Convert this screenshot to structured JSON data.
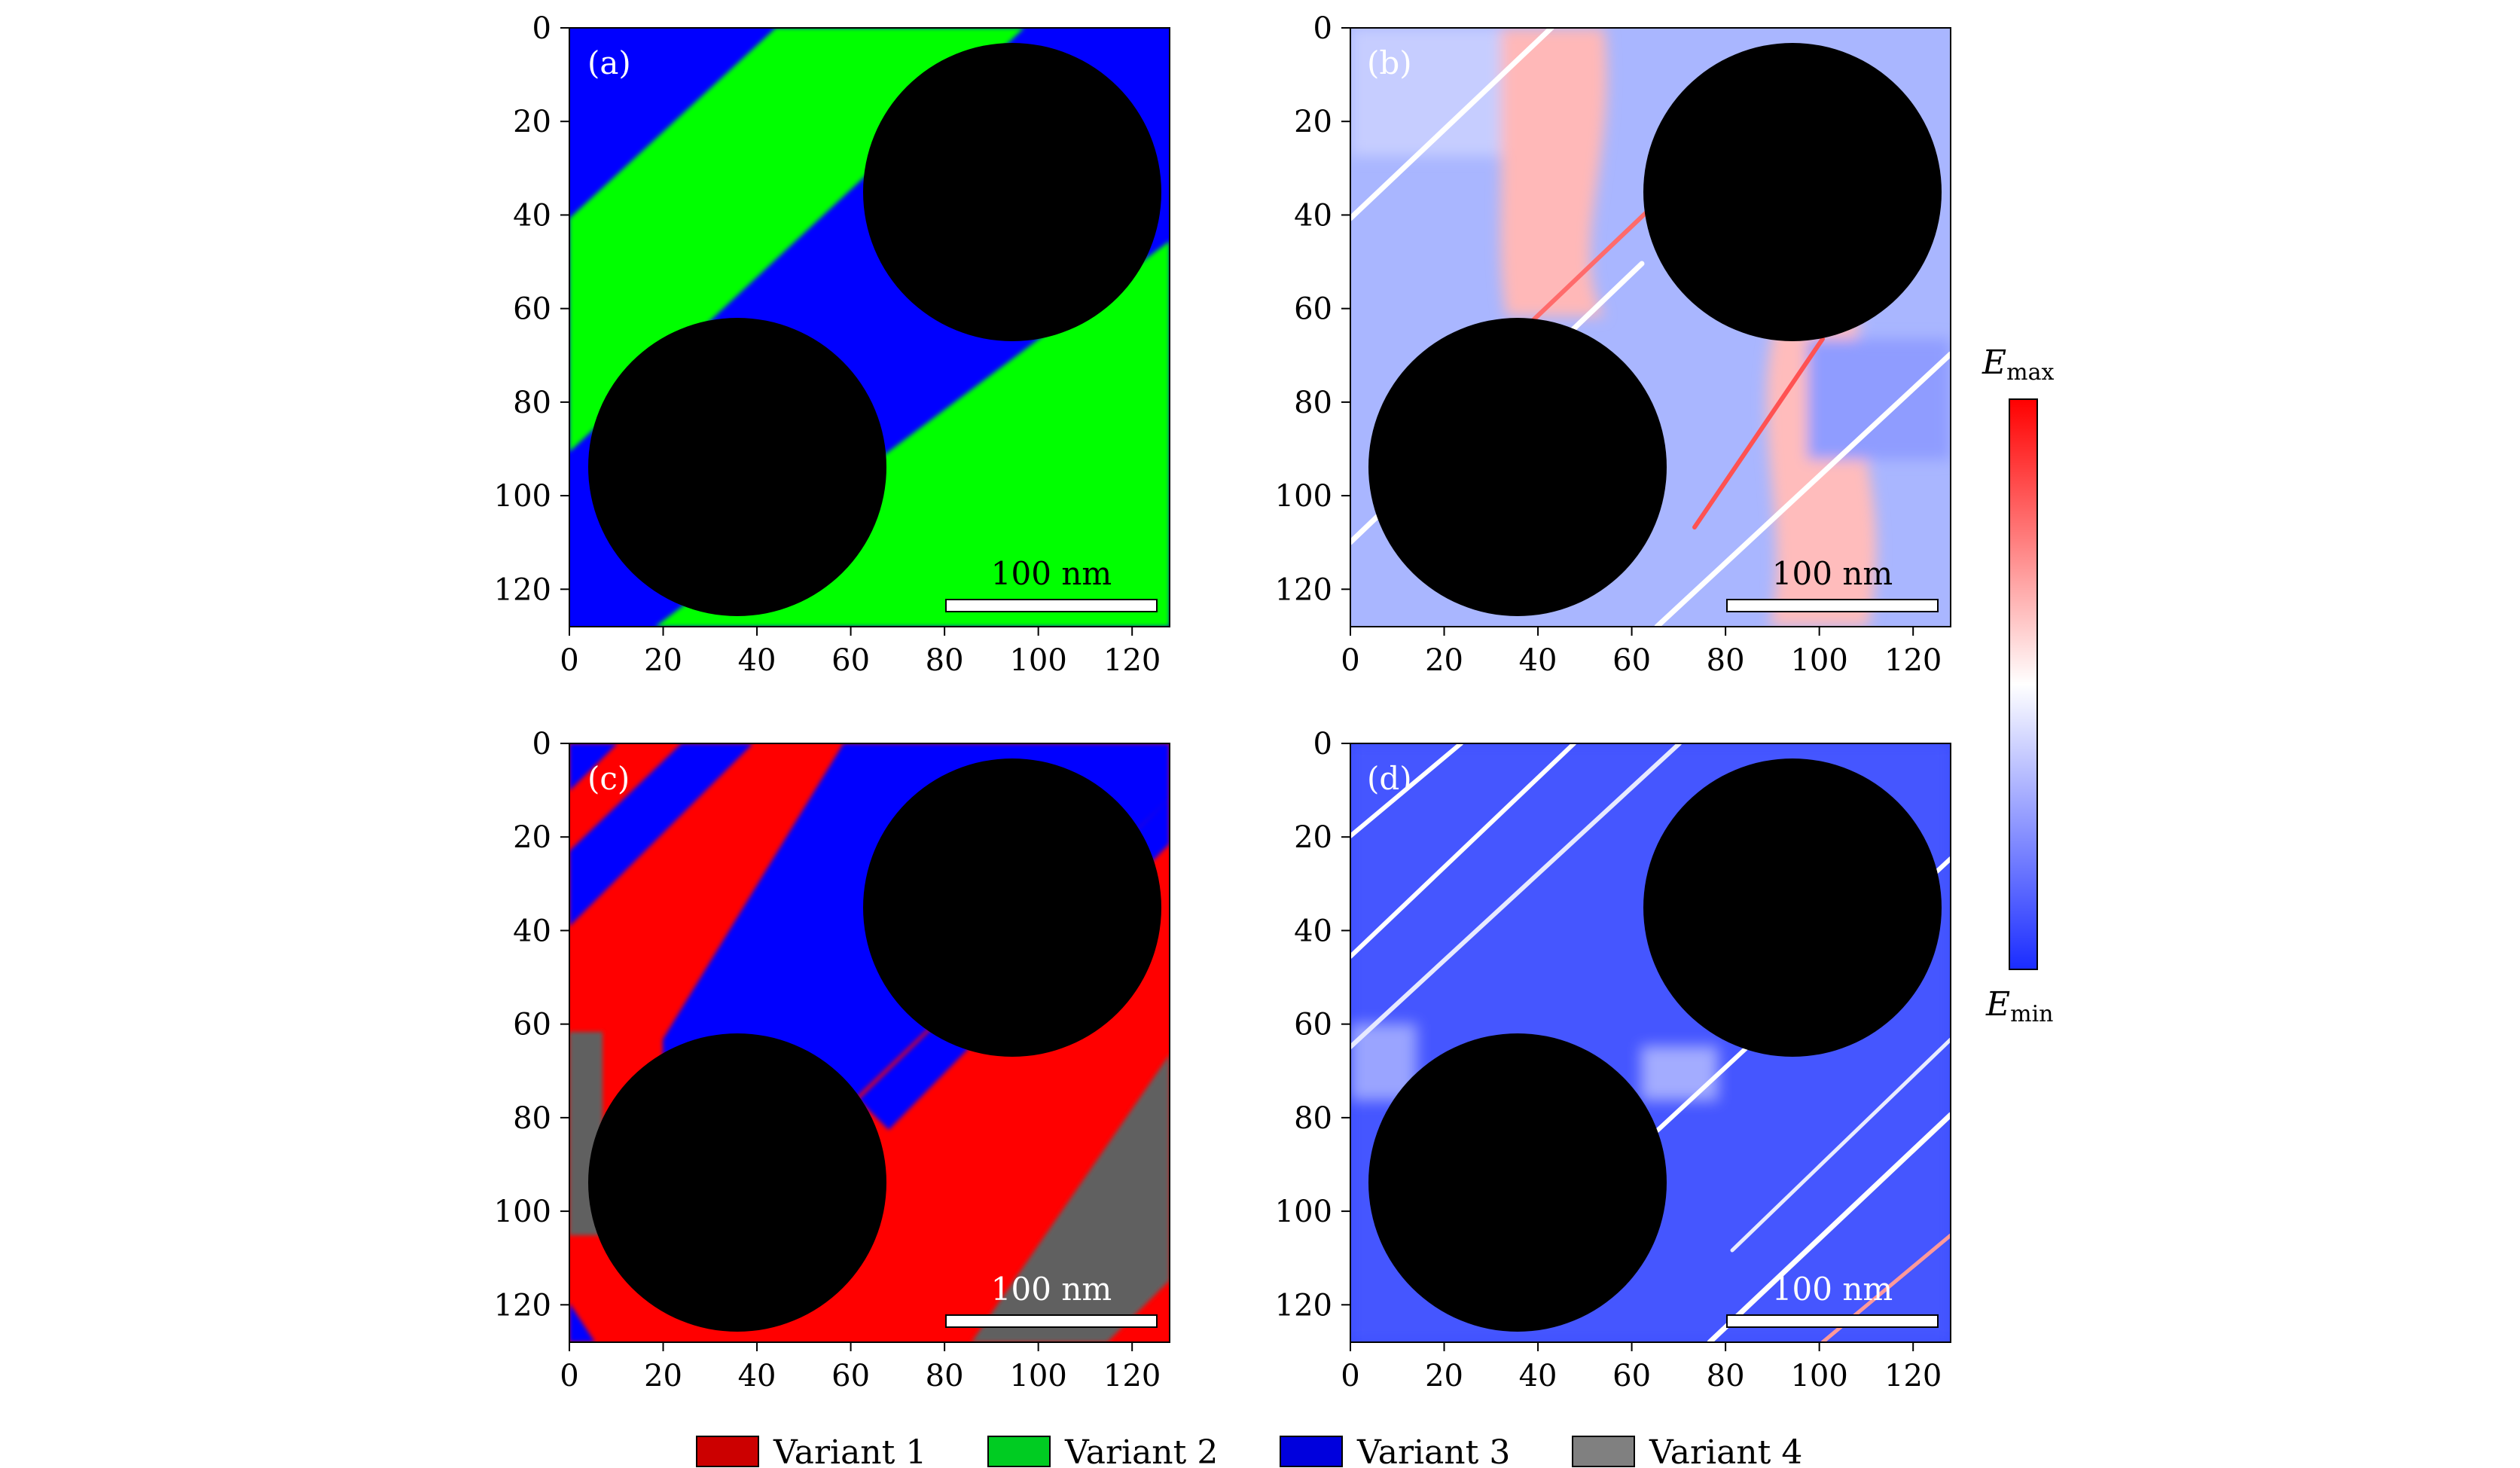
{
  "panels": [
    {
      "id": "a",
      "label": "(a)",
      "type": "variant-map",
      "scalebar": "100 nm",
      "x_ticks": [
        "0",
        "20",
        "40",
        "60",
        "80",
        "100",
        "120"
      ],
      "y_ticks": [
        "0",
        "20",
        "40",
        "60",
        "80",
        "100",
        "120"
      ]
    },
    {
      "id": "b",
      "label": "(b)",
      "type": "energy-map",
      "scalebar": "100 nm",
      "x_ticks": [
        "0",
        "20",
        "40",
        "60",
        "80",
        "100",
        "120"
      ],
      "y_ticks": [
        "0",
        "20",
        "40",
        "60",
        "80",
        "100",
        "120"
      ]
    },
    {
      "id": "c",
      "label": "(c)",
      "type": "variant-map",
      "scalebar": "100 nm",
      "x_ticks": [
        "0",
        "20",
        "40",
        "60",
        "80",
        "100",
        "120"
      ],
      "y_ticks": [
        "0",
        "20",
        "40",
        "60",
        "80",
        "100",
        "120"
      ]
    },
    {
      "id": "d",
      "label": "(d)",
      "type": "energy-map",
      "scalebar": "100 nm",
      "x_ticks": [
        "0",
        "20",
        "40",
        "60",
        "80",
        "100",
        "120"
      ],
      "y_ticks": [
        "0",
        "20",
        "40",
        "60",
        "80",
        "100",
        "120"
      ]
    }
  ],
  "colorbar": {
    "max_base": "E",
    "max_sub": "max",
    "min_base": "E",
    "min_sub": "min",
    "color_max": "#ff0000",
    "color_mid": "#ffffff",
    "color_min": "#1a2cff"
  },
  "legend": [
    {
      "label": "Variant 1",
      "color": "#cc0000"
    },
    {
      "label": "Variant 2",
      "color": "#00cc22"
    },
    {
      "label": "Variant 3",
      "color": "#0000dd"
    },
    {
      "label": "Variant 4",
      "color": "#808080"
    }
  ],
  "colors": {
    "variant_red": "#ff0000",
    "variant_green": "#00ff00",
    "variant_blue": "#0000ff",
    "variant_gray": "#606060",
    "particle": "#000000"
  }
}
